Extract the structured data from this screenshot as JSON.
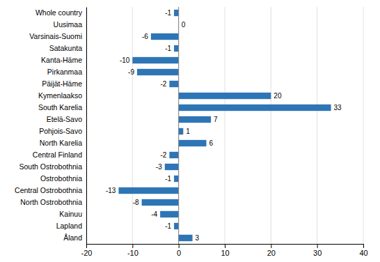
{
  "chart_data": {
    "type": "bar",
    "orientation": "horizontal",
    "categories": [
      "Whole country",
      "Uusimaa",
      "Varsinais-Suomi",
      "Satakunta",
      "Kanta-Häme",
      "Pirkanmaa",
      "Päijät-Häme",
      "Kymenlaakso",
      "South Karelia",
      "Etelä-Savo",
      "Pohjois-Savo",
      "North Karelia",
      "Central Finland",
      "South Ostrobothnia",
      "Ostrobothnia",
      "Central Ostrobothnia",
      "North Ostrobothnia",
      "Kainuu",
      "Lapland",
      "Åland"
    ],
    "values": [
      -1,
      0,
      -6,
      -1,
      -10,
      -9,
      -2,
      20,
      33,
      7,
      1,
      6,
      -2,
      -3,
      -1,
      -13,
      -8,
      -4,
      -1,
      3
    ],
    "color": "#2E75B6",
    "xlim": [
      -20,
      40
    ],
    "xticks": [
      -20,
      -10,
      0,
      10,
      20,
      30,
      40
    ],
    "grid": true,
    "data_labels": true
  }
}
